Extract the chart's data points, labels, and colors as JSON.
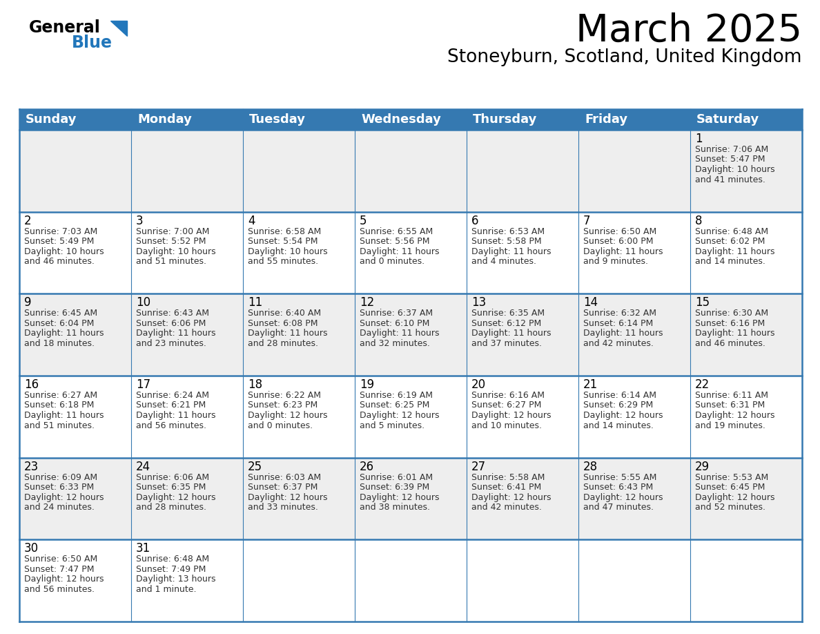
{
  "title": "March 2025",
  "subtitle": "Stoneyburn, Scotland, United Kingdom",
  "header_color": "#3579b1",
  "header_text_color": "#ffffff",
  "cell_bg_light": "#eeeeee",
  "cell_bg_white": "#ffffff",
  "border_color": "#3579b1",
  "text_color": "#333333",
  "days_of_week": [
    "Sunday",
    "Monday",
    "Tuesday",
    "Wednesday",
    "Thursday",
    "Friday",
    "Saturday"
  ],
  "title_fontsize": 40,
  "subtitle_fontsize": 19,
  "day_header_fontsize": 13,
  "day_num_fontsize": 12,
  "cell_text_fontsize": 9,
  "logo_general_fontsize": 17,
  "logo_blue_fontsize": 17,
  "calendar": [
    [
      {
        "day": null,
        "sunrise": null,
        "sunset": null,
        "daylight": null
      },
      {
        "day": null,
        "sunrise": null,
        "sunset": null,
        "daylight": null
      },
      {
        "day": null,
        "sunrise": null,
        "sunset": null,
        "daylight": null
      },
      {
        "day": null,
        "sunrise": null,
        "sunset": null,
        "daylight": null
      },
      {
        "day": null,
        "sunrise": null,
        "sunset": null,
        "daylight": null
      },
      {
        "day": null,
        "sunrise": null,
        "sunset": null,
        "daylight": null
      },
      {
        "day": 1,
        "sunrise": "7:06 AM",
        "sunset": "5:47 PM",
        "daylight": "10 hours\nand 41 minutes."
      }
    ],
    [
      {
        "day": 2,
        "sunrise": "7:03 AM",
        "sunset": "5:49 PM",
        "daylight": "10 hours\nand 46 minutes."
      },
      {
        "day": 3,
        "sunrise": "7:00 AM",
        "sunset": "5:52 PM",
        "daylight": "10 hours\nand 51 minutes."
      },
      {
        "day": 4,
        "sunrise": "6:58 AM",
        "sunset": "5:54 PM",
        "daylight": "10 hours\nand 55 minutes."
      },
      {
        "day": 5,
        "sunrise": "6:55 AM",
        "sunset": "5:56 PM",
        "daylight": "11 hours\nand 0 minutes."
      },
      {
        "day": 6,
        "sunrise": "6:53 AM",
        "sunset": "5:58 PM",
        "daylight": "11 hours\nand 4 minutes."
      },
      {
        "day": 7,
        "sunrise": "6:50 AM",
        "sunset": "6:00 PM",
        "daylight": "11 hours\nand 9 minutes."
      },
      {
        "day": 8,
        "sunrise": "6:48 AM",
        "sunset": "6:02 PM",
        "daylight": "11 hours\nand 14 minutes."
      }
    ],
    [
      {
        "day": 9,
        "sunrise": "6:45 AM",
        "sunset": "6:04 PM",
        "daylight": "11 hours\nand 18 minutes."
      },
      {
        "day": 10,
        "sunrise": "6:43 AM",
        "sunset": "6:06 PM",
        "daylight": "11 hours\nand 23 minutes."
      },
      {
        "day": 11,
        "sunrise": "6:40 AM",
        "sunset": "6:08 PM",
        "daylight": "11 hours\nand 28 minutes."
      },
      {
        "day": 12,
        "sunrise": "6:37 AM",
        "sunset": "6:10 PM",
        "daylight": "11 hours\nand 32 minutes."
      },
      {
        "day": 13,
        "sunrise": "6:35 AM",
        "sunset": "6:12 PM",
        "daylight": "11 hours\nand 37 minutes."
      },
      {
        "day": 14,
        "sunrise": "6:32 AM",
        "sunset": "6:14 PM",
        "daylight": "11 hours\nand 42 minutes."
      },
      {
        "day": 15,
        "sunrise": "6:30 AM",
        "sunset": "6:16 PM",
        "daylight": "11 hours\nand 46 minutes."
      }
    ],
    [
      {
        "day": 16,
        "sunrise": "6:27 AM",
        "sunset": "6:18 PM",
        "daylight": "11 hours\nand 51 minutes."
      },
      {
        "day": 17,
        "sunrise": "6:24 AM",
        "sunset": "6:21 PM",
        "daylight": "11 hours\nand 56 minutes."
      },
      {
        "day": 18,
        "sunrise": "6:22 AM",
        "sunset": "6:23 PM",
        "daylight": "12 hours\nand 0 minutes."
      },
      {
        "day": 19,
        "sunrise": "6:19 AM",
        "sunset": "6:25 PM",
        "daylight": "12 hours\nand 5 minutes."
      },
      {
        "day": 20,
        "sunrise": "6:16 AM",
        "sunset": "6:27 PM",
        "daylight": "12 hours\nand 10 minutes."
      },
      {
        "day": 21,
        "sunrise": "6:14 AM",
        "sunset": "6:29 PM",
        "daylight": "12 hours\nand 14 minutes."
      },
      {
        "day": 22,
        "sunrise": "6:11 AM",
        "sunset": "6:31 PM",
        "daylight": "12 hours\nand 19 minutes."
      }
    ],
    [
      {
        "day": 23,
        "sunrise": "6:09 AM",
        "sunset": "6:33 PM",
        "daylight": "12 hours\nand 24 minutes."
      },
      {
        "day": 24,
        "sunrise": "6:06 AM",
        "sunset": "6:35 PM",
        "daylight": "12 hours\nand 28 minutes."
      },
      {
        "day": 25,
        "sunrise": "6:03 AM",
        "sunset": "6:37 PM",
        "daylight": "12 hours\nand 33 minutes."
      },
      {
        "day": 26,
        "sunrise": "6:01 AM",
        "sunset": "6:39 PM",
        "daylight": "12 hours\nand 38 minutes."
      },
      {
        "day": 27,
        "sunrise": "5:58 AM",
        "sunset": "6:41 PM",
        "daylight": "12 hours\nand 42 minutes."
      },
      {
        "day": 28,
        "sunrise": "5:55 AM",
        "sunset": "6:43 PM",
        "daylight": "12 hours\nand 47 minutes."
      },
      {
        "day": 29,
        "sunrise": "5:53 AM",
        "sunset": "6:45 PM",
        "daylight": "12 hours\nand 52 minutes."
      }
    ],
    [
      {
        "day": 30,
        "sunrise": "6:50 AM",
        "sunset": "7:47 PM",
        "daylight": "12 hours\nand 56 minutes."
      },
      {
        "day": 31,
        "sunrise": "6:48 AM",
        "sunset": "7:49 PM",
        "daylight": "13 hours\nand 1 minute."
      },
      {
        "day": null,
        "sunrise": null,
        "sunset": null,
        "daylight": null
      },
      {
        "day": null,
        "sunrise": null,
        "sunset": null,
        "daylight": null
      },
      {
        "day": null,
        "sunrise": null,
        "sunset": null,
        "daylight": null
      },
      {
        "day": null,
        "sunrise": null,
        "sunset": null,
        "daylight": null
      },
      {
        "day": null,
        "sunrise": null,
        "sunset": null,
        "daylight": null
      }
    ]
  ]
}
